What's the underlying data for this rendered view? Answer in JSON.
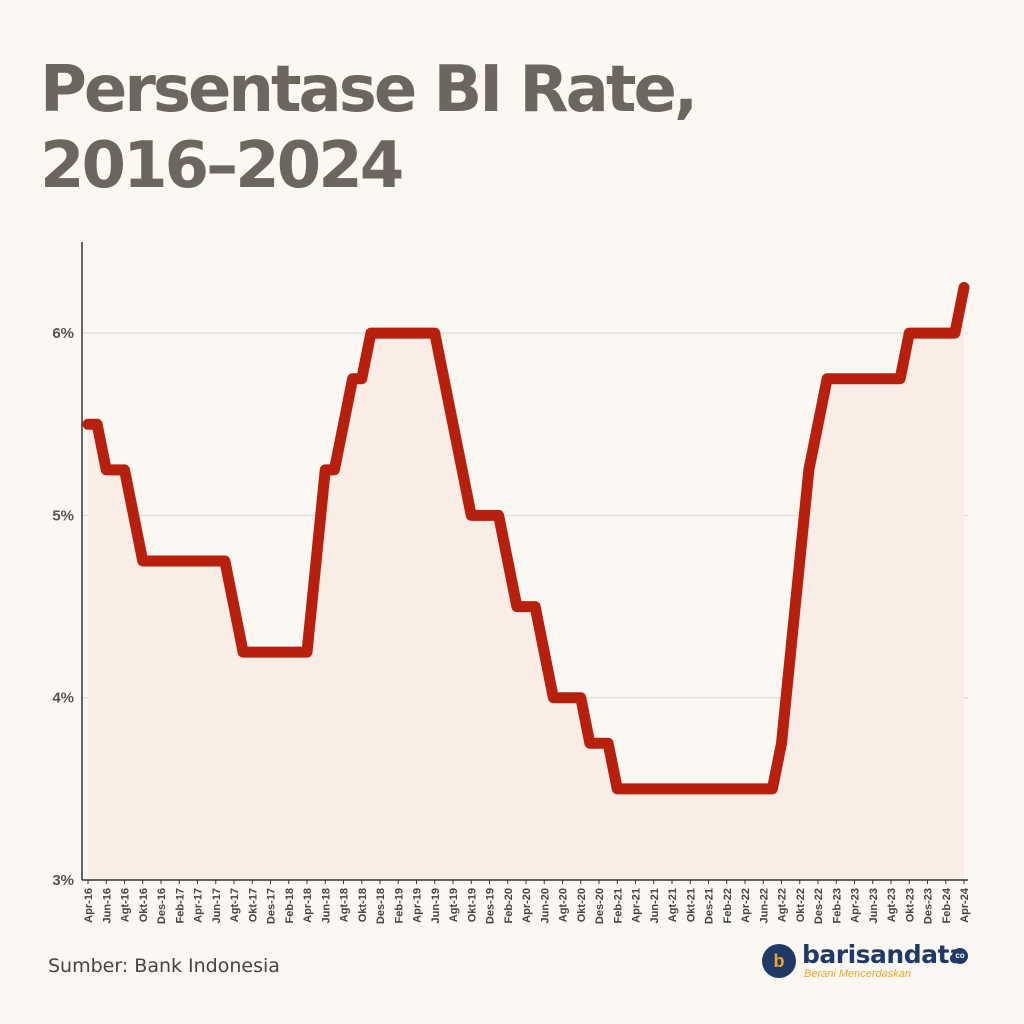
{
  "title_line1": "Persentase BI Rate,",
  "title_line2": "2016–2024",
  "source": "Sumber: Bank Indonesia",
  "brand": {
    "icon": "barisandata-logo-icon",
    "name": "barisandata",
    "suffix": "co",
    "tagline": "Berani Mencerdaskan"
  },
  "colors": {
    "background": "#fbf7f3",
    "line": "#b8200e",
    "area": "#f9ede6",
    "title": "#6d6660",
    "grid": "#d9d6d3",
    "axis": "#333333",
    "brand_navy": "#1f3a66",
    "brand_orange": "#f2a52a"
  },
  "chart_data": {
    "type": "line",
    "ylim": [
      3,
      6.5
    ],
    "y_ticks": [
      "3%",
      "4%",
      "5%",
      "6%"
    ],
    "grid": "horizontal",
    "x_ticks": [
      "Apr-16",
      "Jun-16",
      "Agt-16",
      "Okt-16",
      "Des-16",
      "Feb-17",
      "Apr-17",
      "Jun-17",
      "Agt-17",
      "Okt-17",
      "Des-17",
      "Feb-18",
      "Apr-18",
      "Jun-18",
      "Agt-18",
      "Okt-18",
      "Des-18",
      "Feb-19",
      "Apr-19",
      "Jun-19",
      "Agt-19",
      "Okt-19",
      "Des-19",
      "Feb-20",
      "Apr-20",
      "Jun-20",
      "Agt-20",
      "Okt-20",
      "Des-20",
      "Feb-21",
      "Apr-21",
      "Jun-21",
      "Agt-21",
      "Okt-21",
      "Des-21",
      "Feb-22",
      "Apr-22",
      "Jun-22",
      "Agt-22",
      "Okt-22",
      "Des-22",
      "Feb-23",
      "Apr-23",
      "Jun-23",
      "Agt-23",
      "Okt-23",
      "Des-23",
      "Feb-24",
      "Apr-24"
    ],
    "series": [
      {
        "x": [
          "Apr-16",
          "May-16",
          "Jun-16",
          "Jul-16",
          "Aug-16",
          "Sep-16",
          "Oct-16",
          "Nov-16",
          "Dec-16",
          "Jan-17",
          "Feb-17",
          "Mar-17",
          "Apr-17",
          "May-17",
          "Jun-17",
          "Jul-17",
          "Aug-17",
          "Sep-17",
          "Oct-17",
          "Nov-17",
          "Dec-17",
          "Jan-18",
          "Feb-18",
          "Mar-18",
          "Apr-18",
          "May-18",
          "Jun-18",
          "Jul-18",
          "Aug-18",
          "Sep-18",
          "Oct-18",
          "Nov-18",
          "Dec-18",
          "Jan-19",
          "Feb-19",
          "Mar-19",
          "Apr-19",
          "May-19",
          "Jun-19",
          "Jul-19",
          "Aug-19",
          "Sep-19",
          "Oct-19",
          "Nov-19",
          "Dec-19",
          "Jan-20",
          "Feb-20",
          "Mar-20",
          "Apr-20",
          "May-20",
          "Jun-20",
          "Jul-20",
          "Aug-20",
          "Sep-20",
          "Oct-20",
          "Nov-20",
          "Dec-20",
          "Jan-21",
          "Feb-21",
          "Mar-21",
          "Apr-21",
          "May-21",
          "Jun-21",
          "Jul-21",
          "Aug-21",
          "Sep-21",
          "Oct-21",
          "Nov-21",
          "Dec-21",
          "Jan-22",
          "Feb-22",
          "Mar-22",
          "Apr-22",
          "May-22",
          "Jun-22",
          "Jul-22",
          "Aug-22",
          "Sep-22",
          "Oct-22",
          "Nov-22",
          "Dec-22",
          "Jan-23",
          "Feb-23",
          "Mar-23",
          "Apr-23",
          "May-23",
          "Jun-23",
          "Jul-23",
          "Aug-23",
          "Sep-23",
          "Oct-23",
          "Nov-23",
          "Dec-23",
          "Jan-24",
          "Feb-24",
          "Mar-24",
          "Apr-24"
        ],
        "values": [
          5.5,
          5.5,
          5.25,
          5.25,
          5.25,
          5.0,
          4.75,
          4.75,
          4.75,
          4.75,
          4.75,
          4.75,
          4.75,
          4.75,
          4.75,
          4.75,
          4.5,
          4.25,
          4.25,
          4.25,
          4.25,
          4.25,
          4.25,
          4.25,
          4.25,
          4.75,
          5.25,
          5.25,
          5.5,
          5.75,
          5.75,
          6.0,
          6.0,
          6.0,
          6.0,
          6.0,
          6.0,
          6.0,
          6.0,
          5.75,
          5.5,
          5.25,
          5.0,
          5.0,
          5.0,
          5.0,
          4.75,
          4.5,
          4.5,
          4.5,
          4.25,
          4.0,
          4.0,
          4.0,
          4.0,
          3.75,
          3.75,
          3.75,
          3.5,
          3.5,
          3.5,
          3.5,
          3.5,
          3.5,
          3.5,
          3.5,
          3.5,
          3.5,
          3.5,
          3.5,
          3.5,
          3.5,
          3.5,
          3.5,
          3.5,
          3.5,
          3.75,
          4.25,
          4.75,
          5.25,
          5.5,
          5.75,
          5.75,
          5.75,
          5.75,
          5.75,
          5.75,
          5.75,
          5.75,
          5.75,
          6.0,
          6.0,
          6.0,
          6.0,
          6.0,
          6.0,
          6.25
        ]
      }
    ]
  }
}
